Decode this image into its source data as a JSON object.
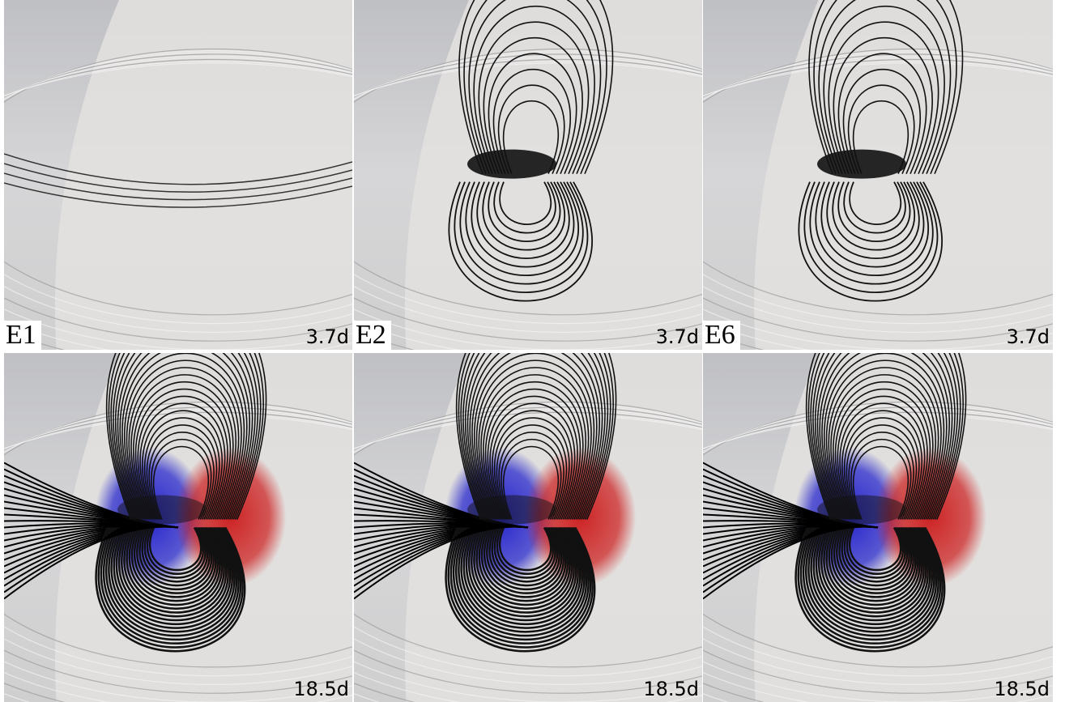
{
  "panels": [
    {
      "label": "E1",
      "time": "3.7d"
    },
    {
      "label": "E2",
      "time": "3.7d"
    },
    {
      "label": "E6",
      "time": "3.7d"
    },
    {
      "time": "18.5d"
    },
    {
      "time": "18.5d"
    },
    {
      "time": "18.5d"
    }
  ]
}
